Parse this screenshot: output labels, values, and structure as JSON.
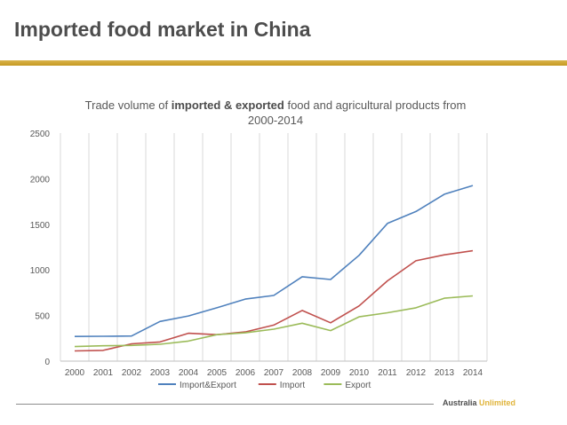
{
  "slide": {
    "title": "Imported food market in China"
  },
  "branding": {
    "word1": "Australia",
    "word2": "Unlimited"
  },
  "colors": {
    "accent": "#c9a02a",
    "import_export": "#4f81bd",
    "import": "#c0504d",
    "export": "#9bbb59"
  },
  "chart_data": {
    "type": "line",
    "title_parts": {
      "pre": "Trade volume of ",
      "bold": "imported & exported",
      "post": " food and agricultural products from 2000-2014"
    },
    "categories": [
      "2000",
      "2001",
      "2002",
      "2003",
      "2004",
      "2005",
      "2006",
      "2007",
      "2008",
      "2009",
      "2010",
      "2011",
      "2012",
      "2013",
      "2014"
    ],
    "ylim": [
      0,
      2500
    ],
    "yticks": [
      0,
      500,
      1000,
      1500,
      2000,
      2500
    ],
    "grid": "vertical",
    "legend_position": "bottom",
    "series": [
      {
        "name": "Import&Export",
        "color": "#4f81bd",
        "values": [
          270,
          272,
          275,
          435,
          495,
          585,
          680,
          720,
          925,
          895,
          1160,
          1510,
          1640,
          1830,
          1925
        ]
      },
      {
        "name": "Import",
        "color": "#c0504d",
        "values": [
          112,
          118,
          190,
          210,
          305,
          290,
          320,
          395,
          555,
          420,
          605,
          880,
          1100,
          1165,
          1210
        ]
      },
      {
        "name": "Export",
        "color": "#9bbb59",
        "values": [
          160,
          168,
          172,
          185,
          220,
          290,
          310,
          350,
          415,
          335,
          485,
          530,
          585,
          690,
          715
        ]
      }
    ]
  }
}
